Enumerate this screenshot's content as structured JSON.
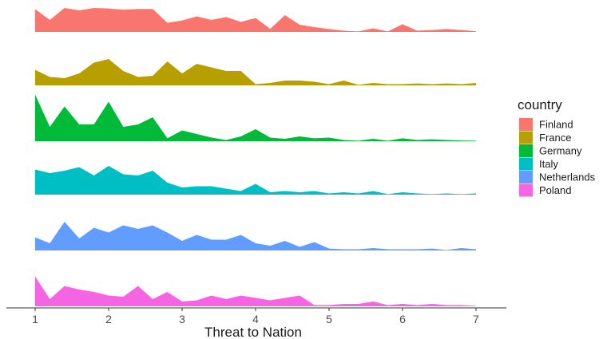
{
  "chart_data": {
    "type": "area",
    "chart_style": "ridgeline",
    "xlabel": "Threat to Nation",
    "xlim": [
      1,
      7
    ],
    "x_ticks": [
      1,
      2,
      3,
      4,
      5,
      6,
      7
    ],
    "grid": false,
    "legend": {
      "title": "country",
      "position": "right"
    },
    "x": [
      1.0,
      1.2,
      1.4,
      1.6,
      1.8,
      2.0,
      2.2,
      2.4,
      2.6,
      2.8,
      3.0,
      3.2,
      3.4,
      3.6,
      3.8,
      4.0,
      4.2,
      4.4,
      4.6,
      4.8,
      5.0,
      5.2,
      5.4,
      5.6,
      5.8,
      6.0,
      6.2,
      6.4,
      6.6,
      6.8,
      7.0
    ],
    "series": [
      {
        "name": "Finland",
        "color": "#F8766D",
        "values": [
          0.95,
          0.5,
          1.0,
          0.9,
          1.0,
          0.98,
          0.93,
          0.96,
          0.96,
          0.38,
          0.48,
          0.65,
          0.5,
          0.62,
          0.42,
          0.58,
          0.13,
          0.7,
          0.3,
          0.2,
          0.12,
          0.05,
          0.02,
          0.15,
          0.02,
          0.32,
          0.05,
          0.08,
          0.12,
          0.08,
          0.03
        ]
      },
      {
        "name": "France",
        "color": "#B79F00",
        "values": [
          0.65,
          0.35,
          0.3,
          0.5,
          0.95,
          1.1,
          0.6,
          0.35,
          0.4,
          1.0,
          0.5,
          0.9,
          0.75,
          0.6,
          0.6,
          0.05,
          0.1,
          0.2,
          0.2,
          0.15,
          0.05,
          0.2,
          0.02,
          0.1,
          0.05,
          0.05,
          0.08,
          0.05,
          0.08,
          0.05,
          0.1
        ]
      },
      {
        "name": "Germany",
        "color": "#00BA38",
        "values": [
          1.95,
          0.6,
          1.45,
          0.7,
          0.7,
          1.65,
          0.6,
          0.7,
          1.0,
          0.12,
          0.45,
          0.3,
          0.15,
          0.05,
          0.2,
          0.5,
          0.15,
          0.1,
          0.2,
          0.12,
          0.15,
          0.05,
          0.02,
          0.1,
          0.02,
          0.12,
          0.05,
          0.08,
          0.05,
          0.03,
          0.02
        ]
      },
      {
        "name": "Italy",
        "color": "#00BFC4",
        "values": [
          1.05,
          0.9,
          1.0,
          1.15,
          0.8,
          1.2,
          0.85,
          0.8,
          1.0,
          0.5,
          0.3,
          0.35,
          0.35,
          0.25,
          0.15,
          0.45,
          0.1,
          0.15,
          0.1,
          0.15,
          0.05,
          0.1,
          0.05,
          0.15,
          0.02,
          0.1,
          0.05,
          0.02,
          0.05,
          0.02,
          0.05
        ]
      },
      {
        "name": "Netherlands",
        "color": "#619CFF",
        "values": [
          0.55,
          0.3,
          1.2,
          0.5,
          0.95,
          0.75,
          1.05,
          0.9,
          1.05,
          0.75,
          0.4,
          0.65,
          0.45,
          0.45,
          0.65,
          0.3,
          0.2,
          0.4,
          0.15,
          0.35,
          0.08,
          0.05,
          0.05,
          0.1,
          0.05,
          0.05,
          0.05,
          0.08,
          0.02,
          0.1,
          0.05
        ]
      },
      {
        "name": "Poland",
        "color": "#F564E3",
        "values": [
          1.25,
          0.3,
          0.85,
          0.7,
          0.6,
          0.45,
          0.4,
          0.85,
          0.3,
          0.6,
          0.2,
          0.25,
          0.45,
          0.3,
          0.45,
          0.35,
          0.25,
          0.35,
          0.45,
          0.05,
          0.05,
          0.1,
          0.1,
          0.2,
          0.05,
          0.1,
          0.05,
          0.1,
          0.05,
          0.05,
          0.02
        ]
      }
    ]
  }
}
